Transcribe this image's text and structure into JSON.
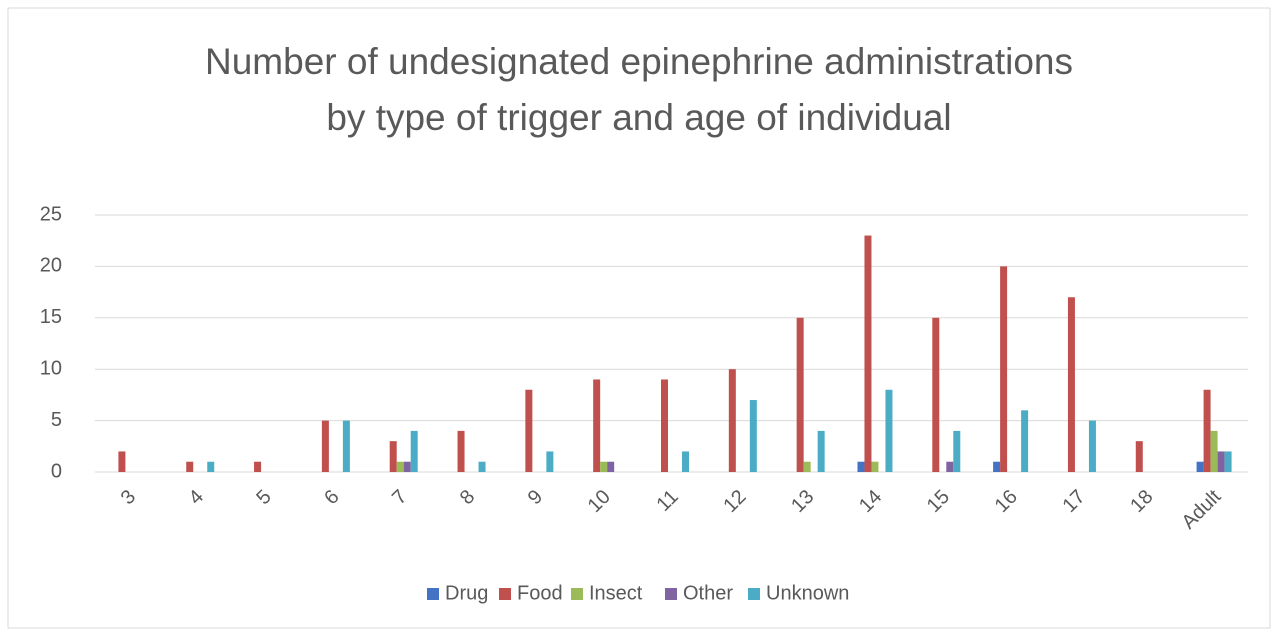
{
  "chart_data": {
    "type": "bar",
    "title": "Number of undesignated epinephrine administrations by type of trigger and age of individual",
    "categories": [
      "3",
      "4",
      "5",
      "6",
      "7",
      "8",
      "9",
      "10",
      "11",
      "12",
      "13",
      "14",
      "15",
      "16",
      "17",
      "18",
      "Adult"
    ],
    "series": [
      {
        "name": "Drug",
        "color": "#4472c4",
        "values": [
          0,
          0,
          0,
          0,
          0,
          0,
          0,
          0,
          0,
          0,
          0,
          1,
          0,
          1,
          0,
          0,
          1
        ]
      },
      {
        "name": "Food",
        "color": "#c0504d",
        "values": [
          2,
          1,
          1,
          5,
          3,
          4,
          8,
          9,
          9,
          10,
          15,
          23,
          15,
          20,
          17,
          3,
          8
        ]
      },
      {
        "name": "Insect",
        "color": "#9bbb59",
        "values": [
          0,
          0,
          0,
          0,
          1,
          0,
          0,
          1,
          0,
          0,
          1,
          1,
          0,
          0,
          0,
          0,
          4
        ]
      },
      {
        "name": "Other",
        "color": "#8064a2",
        "values": [
          0,
          0,
          0,
          0,
          1,
          0,
          0,
          1,
          0,
          0,
          0,
          0,
          1,
          0,
          0,
          0,
          2
        ]
      },
      {
        "name": "Unknown",
        "color": "#4bacc6",
        "values": [
          0,
          1,
          0,
          5,
          4,
          1,
          2,
          0,
          2,
          7,
          4,
          8,
          4,
          6,
          5,
          0,
          2
        ]
      }
    ],
    "ylim": [
      0,
      25
    ],
    "yticks": [
      0,
      5,
      10,
      15,
      20,
      25
    ],
    "grid": true,
    "legend": "bottom"
  }
}
